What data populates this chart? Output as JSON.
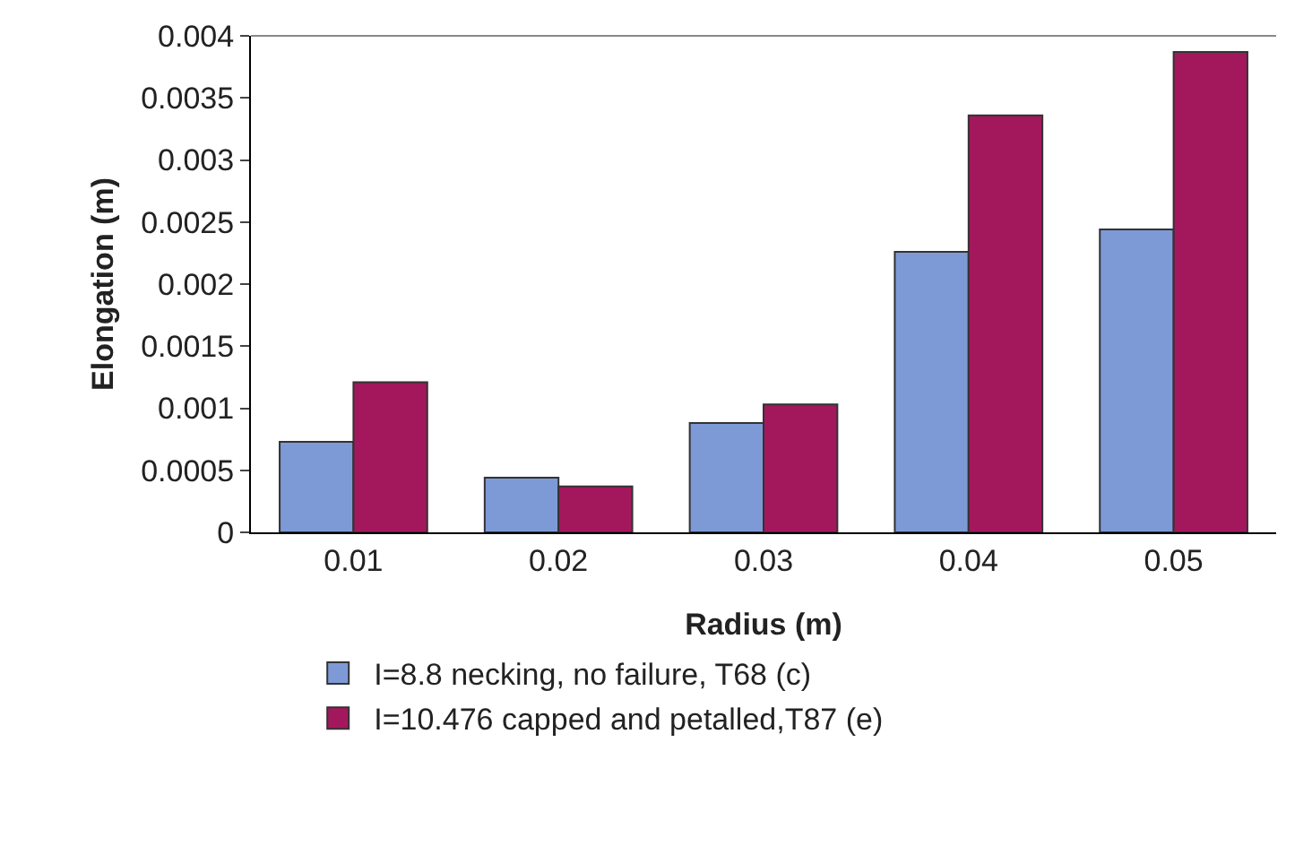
{
  "chart_data": {
    "type": "bar",
    "xlabel": "Radius (m)",
    "ylabel": "Elongation (m)",
    "categories": [
      "0.01",
      "0.02",
      "0.03",
      "0.04",
      "0.05"
    ],
    "series": [
      {
        "name": "I=8.8 necking, no failure, T68 (c)",
        "color": "#7d9ad6",
        "values": [
          0.00073,
          0.00044,
          0.00088,
          0.00226,
          0.00244
        ]
      },
      {
        "name": "I=10.476 capped and petalled,T87 (e)",
        "color": "#a3185c",
        "values": [
          0.00121,
          0.00037,
          0.00103,
          0.00336,
          0.00387
        ]
      }
    ],
    "ylim": [
      0,
      0.004
    ],
    "yticks": [
      0,
      0.0005,
      0.001,
      0.0015,
      0.002,
      0.0025,
      0.003,
      0.0035,
      0.004
    ],
    "grid": false,
    "legend": "bottom"
  }
}
